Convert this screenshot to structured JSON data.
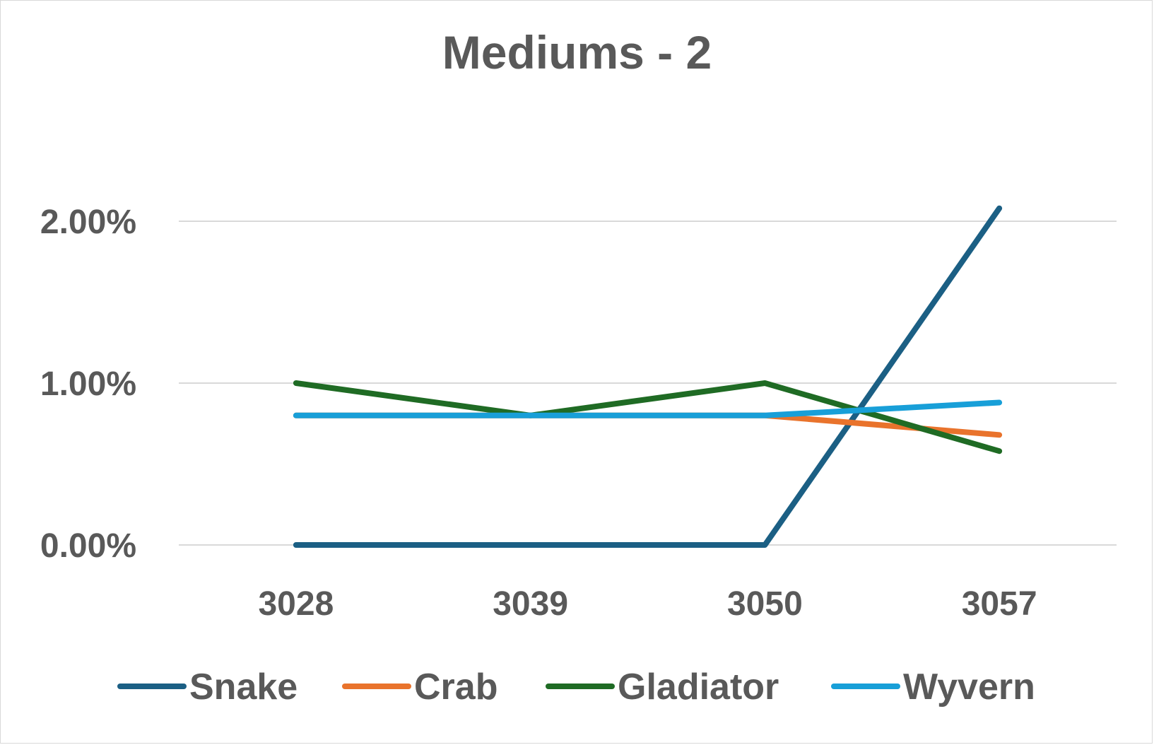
{
  "chart_data": {
    "type": "line",
    "title": "Mediums - 2",
    "categories": [
      "3028",
      "3039",
      "3050",
      "3057"
    ],
    "y_tick_labels": [
      "0.00%",
      "1.00%",
      "2.00%"
    ],
    "y_ticks": [
      0,
      1,
      2
    ],
    "ylim": [
      0,
      2.5
    ],
    "grid": true,
    "legend_position": "bottom",
    "series": [
      {
        "name": "Snake",
        "color": "#1b5f84",
        "values": [
          0.0,
          0.0,
          0.0,
          2.08
        ]
      },
      {
        "name": "Crab",
        "color": "#e9732c",
        "values": [
          0.8,
          0.8,
          0.8,
          0.68
        ]
      },
      {
        "name": "Gladiator",
        "color": "#1f6b24",
        "values": [
          1.0,
          0.8,
          1.0,
          0.58
        ]
      },
      {
        "name": "Wyvern",
        "color": "#189fd8",
        "values": [
          0.8,
          0.8,
          0.8,
          0.88
        ]
      }
    ]
  }
}
